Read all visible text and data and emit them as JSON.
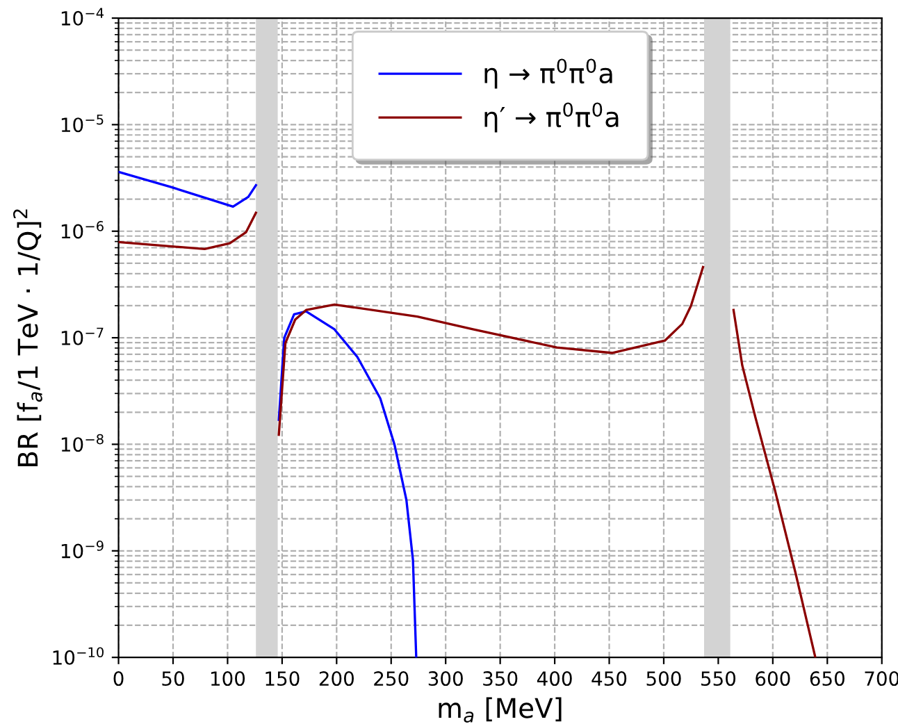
{
  "chart_data": {
    "type": "line",
    "xlabel": "m$_{a}$ [MeV]",
    "ylabel": "BR [f$_{a}$/1 TeV · 1/Q]$^{2}$",
    "log": "y",
    "xlim": [
      0,
      700
    ],
    "xticks": [
      0,
      50,
      100,
      150,
      200,
      250,
      300,
      350,
      400,
      450,
      500,
      550,
      600,
      650,
      700
    ],
    "ylim": [
      1e-10,
      0.0001
    ],
    "yticks": [
      {
        "value": 1e-10,
        "label": "10$^{−10}$"
      },
      {
        "value": 1e-09,
        "label": "10$^{−9}$"
      },
      {
        "value": 1e-08,
        "label": "10$^{−8}$"
      },
      {
        "value": 1e-07,
        "label": "10$^{−7}$"
      },
      {
        "value": 1e-06,
        "label": "10$^{−6}$"
      },
      {
        "value": 1e-05,
        "label": "10$^{−5}$"
      },
      {
        "value": 0.0001,
        "label": "10$^{−4}$"
      }
    ],
    "grid": true,
    "legend": "top center",
    "line_style": "solid",
    "bands": [
      {
        "axis": "x",
        "from": 126,
        "to": 146,
        "color": "#d3d3d3"
      },
      {
        "axis": "x",
        "from": 537,
        "to": 561,
        "color": "#d3d3d3"
      }
    ],
    "series": [
      {
        "name": "η → π$^{0}$π$^{0}$a",
        "color": "#0000ff",
        "x": [
          0,
          48,
          105,
          119,
          126,
          136,
          147,
          152,
          161,
          172,
          198,
          219,
          240,
          253,
          264,
          270,
          273
        ],
        "values": [
          3.6e-06,
          2.6e-06,
          1.7e-06,
          2.1e-06,
          2.7e-06,
          null,
          1.7e-08,
          1e-07,
          1.66e-07,
          1.77e-07,
          1.2e-07,
          6.6e-08,
          2.7e-08,
          1e-08,
          3e-09,
          8.2e-10,
          1e-10
        ]
      },
      {
        "name": "η′ → π$^{0}$π$^{0}$a",
        "color": "#8b0000",
        "x": [
          0,
          79,
          102,
          117,
          126,
          136,
          147,
          153,
          162,
          172,
          198,
          274,
          325,
          402,
          453,
          501,
          517,
          525,
          536,
          550,
          564,
          572,
          584,
          602,
          621,
          639
        ],
        "values": [
          7.9e-07,
          6.8e-07,
          7.7e-07,
          9.8e-07,
          1.49e-06,
          null,
          1.23e-08,
          8.9e-08,
          1.48e-07,
          1.82e-07,
          2.05e-07,
          1.58e-07,
          1.2e-07,
          8.1e-08,
          7.2e-08,
          9.4e-08,
          1.35e-07,
          2e-07,
          4.6e-07,
          null,
          1.82e-07,
          5.5e-08,
          1.8e-08,
          3.7e-09,
          6.1e-10,
          1e-10
        ]
      }
    ]
  }
}
